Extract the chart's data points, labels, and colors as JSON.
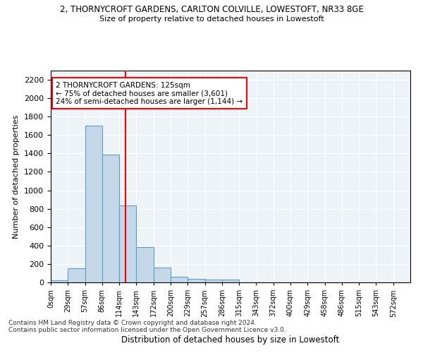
{
  "title1": "2, THORNYCROFT GARDENS, CARLTON COLVILLE, LOWESTOFT, NR33 8GE",
  "title2": "Size of property relative to detached houses in Lowestoft",
  "xlabel": "Distribution of detached houses by size in Lowestoft",
  "ylabel": "Number of detached properties",
  "bin_labels": [
    "0sqm",
    "29sqm",
    "57sqm",
    "86sqm",
    "114sqm",
    "143sqm",
    "172sqm",
    "200sqm",
    "229sqm",
    "257sqm",
    "286sqm",
    "315sqm",
    "343sqm",
    "372sqm",
    "400sqm",
    "429sqm",
    "458sqm",
    "486sqm",
    "515sqm",
    "543sqm",
    "572sqm"
  ],
  "bar_values": [
    20,
    155,
    1700,
    1390,
    835,
    380,
    160,
    65,
    35,
    28,
    28,
    0,
    0,
    0,
    0,
    0,
    0,
    0,
    0,
    0,
    0
  ],
  "bar_color": "#c5d8ea",
  "bar_edge_color": "#5a9fc4",
  "vline_color": "red",
  "annotation_text": "2 THORNYCROFT GARDENS: 125sqm\n← 75% of detached houses are smaller (3,601)\n24% of semi-detached houses are larger (1,144) →",
  "annotation_box_color": "white",
  "annotation_box_edge": "red",
  "ylim": [
    0,
    2300
  ],
  "yticks": [
    0,
    200,
    400,
    600,
    800,
    1000,
    1200,
    1400,
    1600,
    1800,
    2000,
    2200
  ],
  "footnote1": "Contains HM Land Registry data © Crown copyright and database right 2024.",
  "footnote2": "Contains public sector information licensed under the Open Government Licence v3.0.",
  "bg_color": "#eef3f8"
}
